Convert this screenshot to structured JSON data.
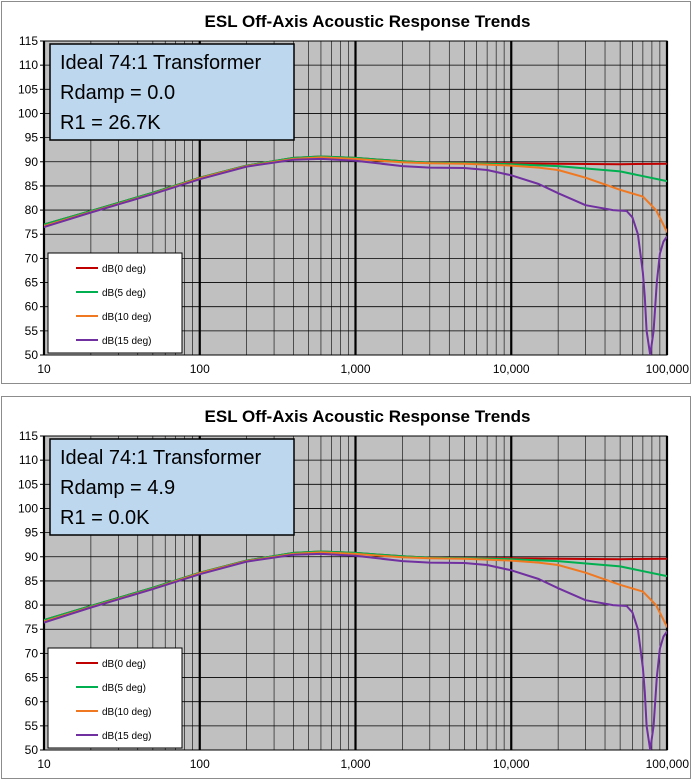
{
  "colors": {
    "plot_background": "#c0c0c0",
    "minor_grid": "#000000",
    "major_grid": "#000000",
    "note_box_fill": "#bcd7ee",
    "series_0deg": "#c00000",
    "series_5deg": "#00b050",
    "series_10deg": "#f07820",
    "series_15deg": "#7030a0"
  },
  "chart_data": [
    {
      "type": "line",
      "title": "ESL Off-Axis Acoustic Response Trends",
      "x_scale": "log",
      "xlim": [
        10,
        100000
      ],
      "ylim": [
        50,
        115
      ],
      "x_ticks": [
        "10",
        "100",
        "1,000",
        "10,000",
        "100,000"
      ],
      "y_ticks": [
        "50",
        "55",
        "60",
        "65",
        "70",
        "75",
        "80",
        "85",
        "90",
        "95",
        "100",
        "105",
        "110",
        "115"
      ],
      "grid": "on",
      "legend_position": "bottom-left",
      "annotation": [
        "Ideal 74:1 Transformer",
        "Rdamp = 0.0",
        "R1 = 26.7K"
      ],
      "series": [
        {
          "name": "dB(0 deg)",
          "color": "#c00000",
          "x": [
            10,
            20,
            50,
            100,
            200,
            400,
            600,
            1000,
            2000,
            3000,
            5000,
            10000,
            20000,
            50000,
            100000
          ],
          "values": [
            77,
            79.8,
            83.6,
            86.7,
            89.2,
            90.8,
            91.1,
            90.8,
            90.1,
            89.8,
            89.7,
            89.7,
            89.6,
            89.5,
            89.6
          ]
        },
        {
          "name": "dB(5 deg)",
          "color": "#00b050",
          "x": [
            10,
            20,
            50,
            100,
            200,
            400,
            600,
            1000,
            2000,
            3000,
            5000,
            10000,
            20000,
            50000,
            100000
          ],
          "values": [
            77,
            79.8,
            83.6,
            86.7,
            89.2,
            90.8,
            91.1,
            90.8,
            90.1,
            89.8,
            89.7,
            89.5,
            89.1,
            88,
            86
          ]
        },
        {
          "name": "dB(10 deg)",
          "color": "#f07820",
          "x": [
            10,
            20,
            50,
            100,
            200,
            400,
            600,
            1000,
            2000,
            3000,
            5000,
            10000,
            15000,
            20000,
            30000,
            50000,
            70000,
            85000,
            100000
          ],
          "values": [
            76.7,
            79.6,
            83.4,
            86.6,
            89.1,
            90.6,
            90.9,
            90.6,
            89.9,
            89.7,
            89.6,
            89.2,
            88.8,
            88.3,
            86.7,
            84.2,
            82.8,
            80,
            75.5
          ]
        },
        {
          "name": "dB(15 deg)",
          "color": "#7030a0",
          "x": [
            10,
            20,
            50,
            100,
            200,
            400,
            600,
            1000,
            2000,
            3000,
            5000,
            7000,
            10000,
            15000,
            20000,
            30000,
            45000,
            55000,
            60000,
            65000,
            70000,
            72000,
            74000,
            78000,
            82000,
            86000,
            90000,
            95000,
            100000
          ],
          "values": [
            76.5,
            79.5,
            83.3,
            86.4,
            89,
            90.4,
            90.6,
            90.2,
            89.1,
            88.8,
            88.7,
            88.3,
            87.2,
            85.4,
            83.5,
            81,
            80,
            79.8,
            78.5,
            75,
            67,
            62,
            55,
            50,
            55,
            65,
            71,
            73.5,
            74.5
          ]
        }
      ]
    },
    {
      "type": "line",
      "title": "ESL Off-Axis Acoustic Response Trends",
      "x_scale": "log",
      "xlim": [
        10,
        100000
      ],
      "ylim": [
        50,
        115
      ],
      "x_ticks": [
        "10",
        "100",
        "1,000",
        "10,000",
        "100,000"
      ],
      "y_ticks": [
        "50",
        "55",
        "60",
        "65",
        "70",
        "75",
        "80",
        "85",
        "90",
        "95",
        "100",
        "105",
        "110",
        "115"
      ],
      "grid": "on",
      "legend_position": "bottom-left",
      "annotation": [
        "Ideal 74:1 Transformer",
        "Rdamp = 4.9",
        "R1 = 0.0K"
      ],
      "series": [
        {
          "name": "dB(0 deg)",
          "color": "#c00000",
          "x": [
            10,
            20,
            50,
            100,
            200,
            400,
            600,
            1000,
            2000,
            3000,
            5000,
            10000,
            20000,
            50000,
            100000
          ],
          "values": [
            76.9,
            79.8,
            83.6,
            86.7,
            89.2,
            90.8,
            91.1,
            90.8,
            90.1,
            89.8,
            89.7,
            89.7,
            89.6,
            89.5,
            89.6
          ]
        },
        {
          "name": "dB(5 deg)",
          "color": "#00b050",
          "x": [
            10,
            20,
            50,
            100,
            200,
            400,
            600,
            1000,
            2000,
            3000,
            5000,
            10000,
            20000,
            50000,
            100000
          ],
          "values": [
            76.9,
            79.8,
            83.6,
            86.7,
            89.2,
            90.8,
            91.1,
            90.8,
            90.1,
            89.8,
            89.7,
            89.5,
            89.1,
            88,
            86
          ]
        },
        {
          "name": "dB(10 deg)",
          "color": "#f07820",
          "x": [
            10,
            20,
            50,
            100,
            200,
            400,
            600,
            1000,
            2000,
            3000,
            5000,
            10000,
            15000,
            20000,
            30000,
            50000,
            70000,
            85000,
            100000
          ],
          "values": [
            76.6,
            79.6,
            83.4,
            86.6,
            89.1,
            90.6,
            90.9,
            90.6,
            89.9,
            89.7,
            89.6,
            89.2,
            88.8,
            88.3,
            86.7,
            84.2,
            82.8,
            80,
            75.5
          ]
        },
        {
          "name": "dB(15 deg)",
          "color": "#7030a0",
          "x": [
            10,
            20,
            50,
            100,
            200,
            400,
            600,
            1000,
            2000,
            3000,
            5000,
            7000,
            10000,
            15000,
            20000,
            30000,
            45000,
            55000,
            60000,
            65000,
            70000,
            72000,
            74000,
            78000,
            82000,
            86000,
            90000,
            95000,
            100000
          ],
          "values": [
            76.4,
            79.5,
            83.3,
            86.4,
            89,
            90.4,
            90.6,
            90.2,
            89.1,
            88.8,
            88.7,
            88.3,
            87.2,
            85.4,
            83.5,
            81,
            80,
            79.8,
            78.5,
            75,
            67,
            62,
            55,
            50,
            55,
            65,
            71,
            73.5,
            74.5
          ]
        }
      ]
    }
  ]
}
